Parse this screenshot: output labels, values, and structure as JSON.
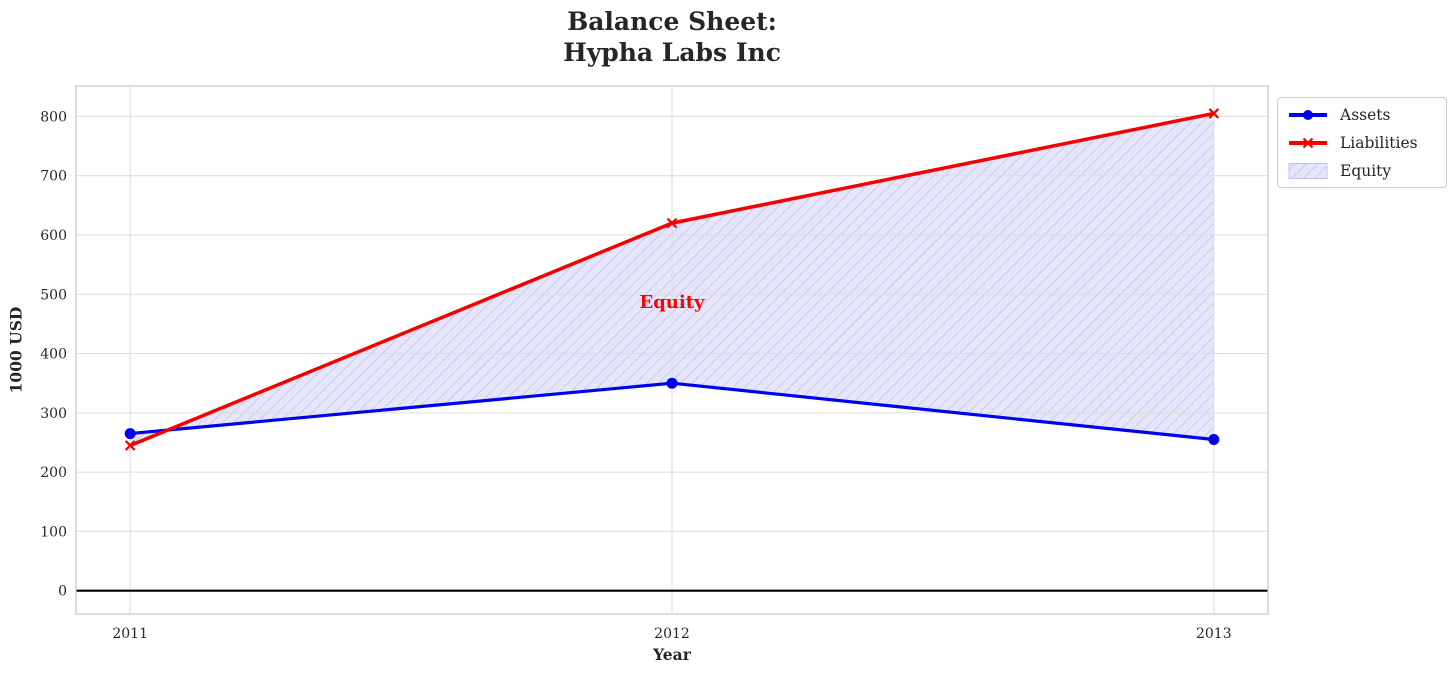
{
  "chart_data": {
    "type": "line",
    "title_lines": [
      "Balance Sheet:",
      "Hypha Labs Inc"
    ],
    "xlabel": "Year",
    "ylabel": "1000 USD",
    "x": [
      2011,
      2012,
      2013
    ],
    "xtick_labels": [
      "2011",
      "2012",
      "2013"
    ],
    "yticks": [
      0,
      100,
      200,
      300,
      400,
      500,
      600,
      700,
      800
    ],
    "xlim": [
      2010.9,
      2013.1
    ],
    "ylim": [
      -39.3,
      851.3
    ],
    "grid": true,
    "series": [
      {
        "name": "Assets",
        "color": "#0000ee",
        "marker": "circle",
        "values": [
          265,
          350,
          255
        ]
      },
      {
        "name": "Liabilities",
        "color": "#f40000",
        "marker": "x",
        "values": [
          245,
          620,
          805
        ]
      }
    ],
    "fill": {
      "label": "Equity",
      "between": [
        "Liabilities",
        "Assets"
      ],
      "facecolor": "#e6e6fa",
      "hatch": "/",
      "hatch_color": "#c3c3ef"
    },
    "annotation": {
      "text": "Equity",
      "color": "#ff0000",
      "x": 2012,
      "y": 485
    },
    "zero_line": {
      "value": 0,
      "color": "#000000"
    },
    "legend": {
      "position": "outside-upper-right",
      "entries": [
        "Assets",
        "Liabilities",
        "Equity"
      ]
    },
    "style": {
      "text_color": "#262626",
      "grid_color": "#dcdcdc",
      "spine_color": "#c9c9c9"
    }
  }
}
